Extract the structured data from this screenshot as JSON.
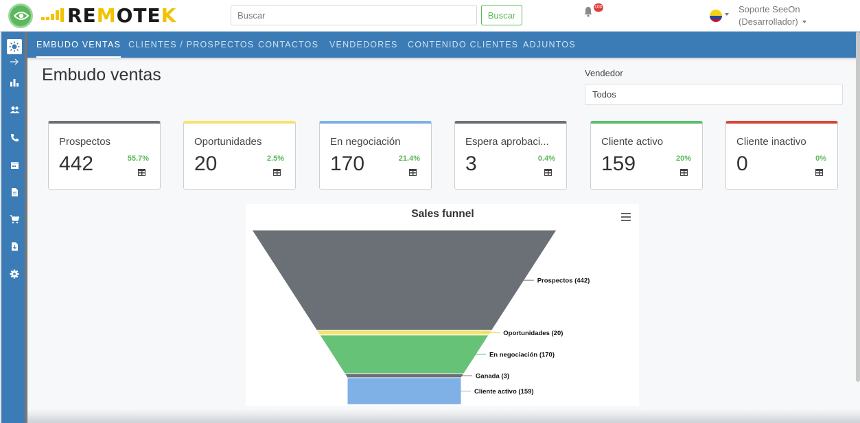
{
  "header": {
    "logo_text_dark": "RE",
    "logo_text_accent": "M",
    "logo_text_dark2": "OTE",
    "logo_text_accent2": "K",
    "search": {
      "placeholder": "Buscar"
    },
    "search_button": "Buscar",
    "notifications_count": "100",
    "user_name": "Soporte SeeOn",
    "user_role": "(Desarrollador)"
  },
  "nav": {
    "tabs": [
      {
        "label": "EMBUDO VENTAS"
      },
      {
        "label": "CLIENTES / PROSPECTOS"
      },
      {
        "label": "CONTACTOS"
      },
      {
        "label": "VENDEDORES"
      },
      {
        "label": "CONTENIDO CLIENTES"
      },
      {
        "label": "ADJUNTOS"
      }
    ]
  },
  "page": {
    "title": "Embudo ventas",
    "vendor_label": "Vendedor",
    "vendor_value": "Todos"
  },
  "cards": [
    {
      "label": "Prospectos",
      "value": "442",
      "pct": "55.7%",
      "color": "#6b7077"
    },
    {
      "label": "Oportunidades",
      "value": "20",
      "pct": "2.5%",
      "color": "#f4e56a"
    },
    {
      "label": "En negociación",
      "value": "170",
      "pct": "21.4%",
      "color": "#7fb0e6"
    },
    {
      "label": "Espera aprobaci...",
      "value": "3",
      "pct": "0.4%",
      "color": "#6b7077"
    },
    {
      "label": "Cliente activo",
      "value": "159",
      "pct": "20%",
      "color": "#5cbf6c"
    },
    {
      "label": "Cliente inactivo",
      "value": "0",
      "pct": "0%",
      "color": "#d9443b"
    }
  ],
  "chart_data": {
    "type": "funnel",
    "title": "Sales funnel",
    "categories": [
      "Prospectos",
      "Oportunidades",
      "En negociación",
      "Ganada",
      "Cliente activo"
    ],
    "values": [
      442,
      20,
      170,
      3,
      159
    ],
    "labels": [
      "Prospectos (442)",
      "Oportunidades (20)",
      "En negociación (170)",
      "Ganada (3)",
      "Cliente activo (159)"
    ],
    "colors": [
      "#6b7077",
      "#f4e56a",
      "#66c277",
      "#6b7077",
      "#7fb0e6"
    ]
  }
}
